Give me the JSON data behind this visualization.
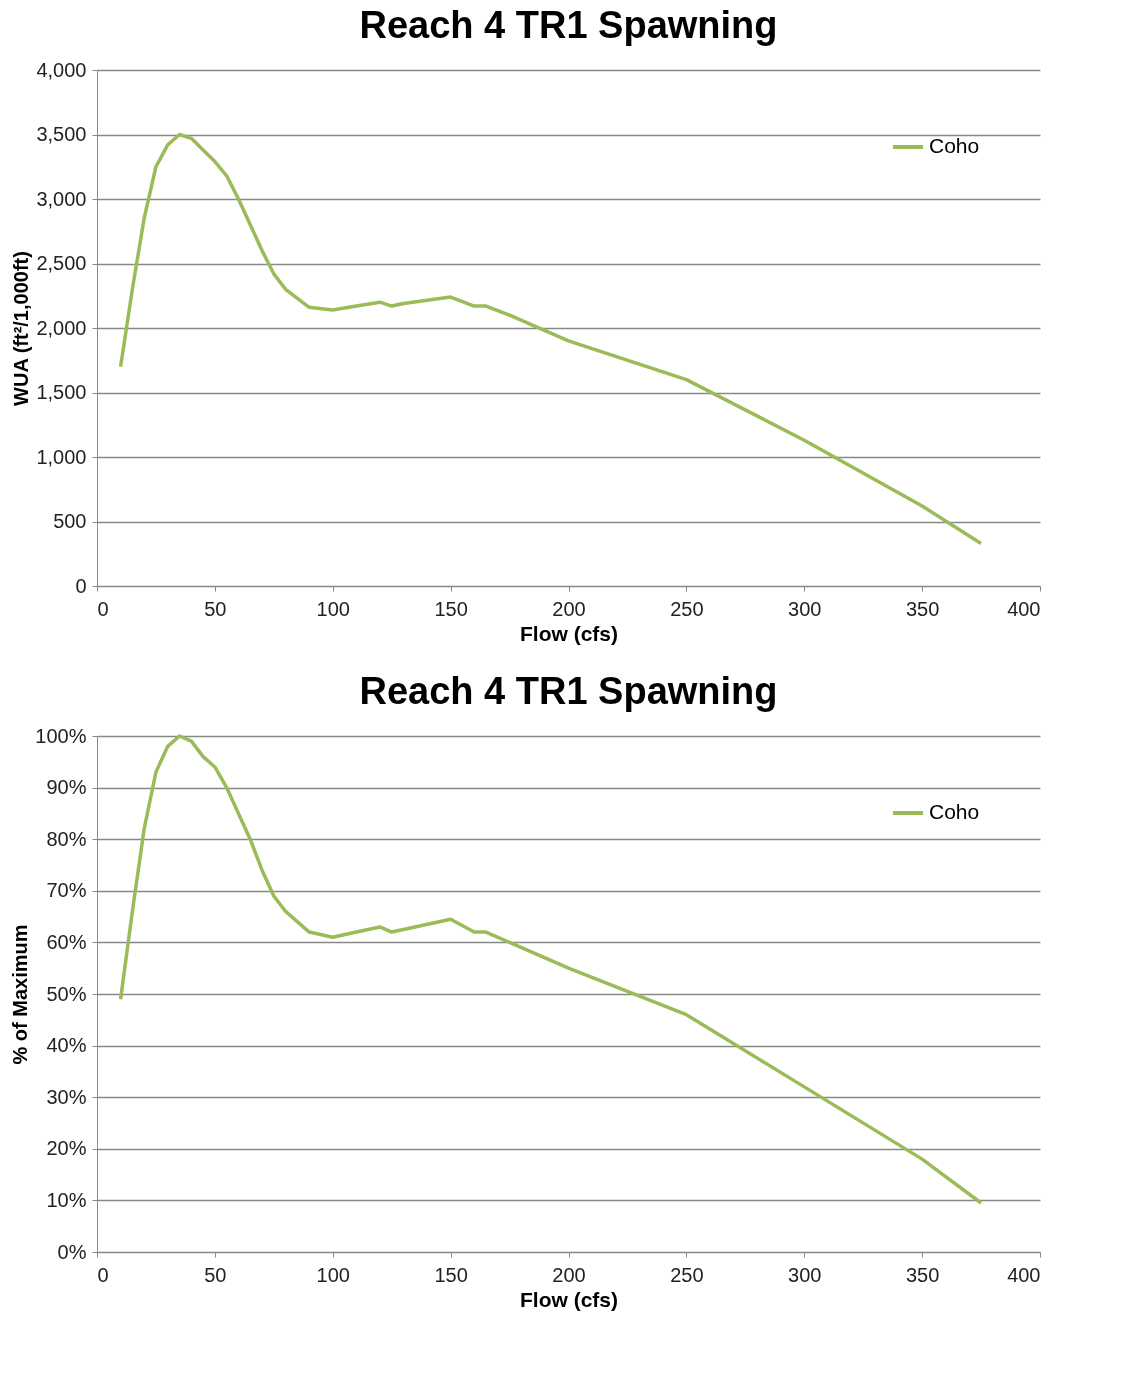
{
  "chart_data": [
    {
      "type": "line",
      "title": "Reach 4 TR1 Spawning",
      "xlabel": "Flow (cfs)",
      "ylabel": "WUA (ft²/1,000ft)",
      "x": [
        10,
        15,
        20,
        25,
        30,
        35,
        40,
        45,
        50,
        55,
        60,
        65,
        70,
        75,
        80,
        90,
        100,
        110,
        120,
        125,
        130,
        150,
        160,
        165,
        175,
        200,
        250,
        300,
        350,
        375
      ],
      "series": [
        {
          "name": "Coho",
          "color": "#9bbb59",
          "values": [
            1700,
            2300,
            2850,
            3250,
            3420,
            3500,
            3470,
            3380,
            3290,
            3180,
            3000,
            2800,
            2600,
            2420,
            2300,
            2160,
            2140,
            2170,
            2200,
            2170,
            2190,
            2240,
            2170,
            2170,
            2100,
            1900,
            1600,
            1130,
            620,
            330
          ]
        }
      ],
      "xlim": [
        0,
        400
      ],
      "xticks": [
        0,
        50,
        100,
        150,
        200,
        250,
        300,
        350,
        400
      ],
      "ylim": [
        0,
        4000
      ],
      "yticks": [
        0,
        500,
        {
          "value": 1000,
          "label": "1,000"
        },
        {
          "value": 1500,
          "label": "1,500"
        },
        {
          "value": 2000,
          "label": "2,000"
        },
        {
          "value": 2500,
          "label": "2,500"
        },
        {
          "value": 3000,
          "label": "3,000"
        },
        {
          "value": 3500,
          "label": "3,500"
        },
        {
          "value": 4000,
          "label": "4,000"
        }
      ],
      "grid": "y",
      "legend": "top right",
      "marker": "none",
      "line_style": "solid"
    },
    {
      "type": "line",
      "title": "Reach 4 TR1 Spawning",
      "xlabel": "Flow (cfs)",
      "ylabel": "% of Maximum",
      "x": [
        10,
        15,
        20,
        25,
        30,
        35,
        40,
        45,
        50,
        55,
        60,
        65,
        70,
        75,
        80,
        90,
        100,
        110,
        120,
        125,
        130,
        150,
        160,
        165,
        175,
        200,
        250,
        300,
        350,
        375
      ],
      "series": [
        {
          "name": "Coho",
          "color": "#9bbb59",
          "values": [
            49,
            66,
            82,
            93,
            98,
            100,
            99,
            96,
            94,
            90,
            85,
            80,
            74,
            69,
            66,
            62,
            61,
            62,
            63,
            62,
            62.5,
            64.5,
            62,
            62,
            60,
            55,
            46,
            32,
            18,
            9.5
          ]
        }
      ],
      "xlim": [
        0,
        400
      ],
      "xticks": [
        0,
        50,
        100,
        150,
        200,
        250,
        300,
        350,
        400
      ],
      "ylim": [
        0,
        100
      ],
      "yticks": [
        {
          "value": 0,
          "label": "0%"
        },
        {
          "value": 10,
          "label": "10%"
        },
        {
          "value": 20,
          "label": "20%"
        },
        {
          "value": 30,
          "label": "30%"
        },
        {
          "value": 40,
          "label": "40%"
        },
        {
          "value": 50,
          "label": "50%"
        },
        {
          "value": 60,
          "label": "60%"
        },
        {
          "value": 70,
          "label": "70%"
        },
        {
          "value": 80,
          "label": "80%"
        },
        {
          "value": 90,
          "label": "90%"
        },
        {
          "value": 100,
          "label": "100%"
        }
      ],
      "grid": "y",
      "legend": "top right",
      "marker": "none",
      "line_style": "solid"
    }
  ]
}
